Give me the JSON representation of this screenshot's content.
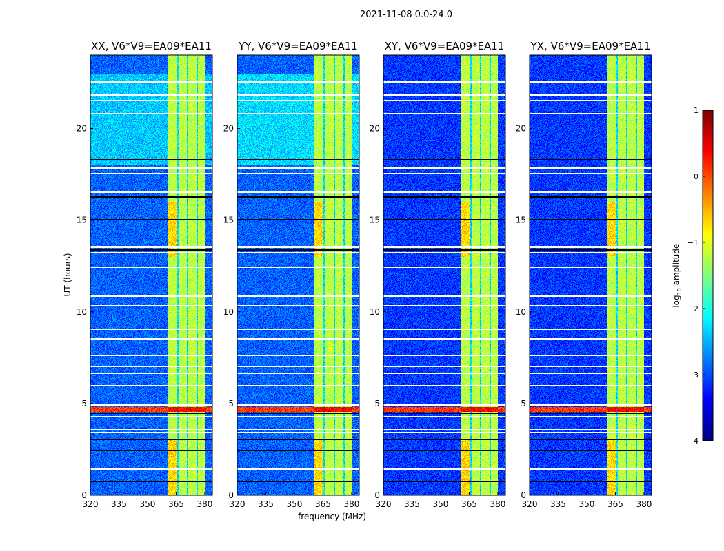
{
  "chart_data": {
    "type": "heatmap",
    "title": "2021-11-08 0.0-24.0",
    "xlabel": "frequency (MHz)",
    "ylabel": "UT (hours)",
    "xlim": [
      320,
      384
    ],
    "ylim": [
      0,
      24
    ],
    "xticks": [
      320,
      335,
      350,
      365,
      380
    ],
    "yticks": [
      0,
      5,
      10,
      15,
      20
    ],
    "panels": [
      {
        "title": "XX, V6*V9=EA09*EA11",
        "background_level": -2.9,
        "evening_level": -2.4
      },
      {
        "title": "YY, V6*V9=EA09*EA11",
        "background_level": -2.9,
        "evening_level": -2.3
      },
      {
        "title": "XY, V6*V9=EA09*EA11",
        "background_level": -3.1,
        "evening_level": -3.1
      },
      {
        "title": "YX, V6*V9=EA09*EA11",
        "background_level": -3.1,
        "evening_level": -3.1
      }
    ],
    "bright_band_mhz": [
      360.5,
      380
    ],
    "bright_band_level": -1.2,
    "band_gaps_mhz": [
      [
        365.3,
        366.2
      ],
      [
        370.6,
        371.4
      ],
      [
        375.6,
        376.4
      ]
    ],
    "flagged_times_hours": [
      [
        1.35,
        1.5
      ],
      [
        3.38,
        3.45
      ],
      [
        3.58,
        3.62
      ],
      [
        4.28,
        4.33
      ],
      [
        4.9,
        5.0
      ],
      [
        5.95,
        6.0
      ],
      [
        6.6,
        6.65
      ],
      [
        7.0,
        7.05
      ],
      [
        7.6,
        7.65
      ],
      [
        8.5,
        8.55
      ],
      [
        9.0,
        9.05
      ],
      [
        9.8,
        9.85
      ],
      [
        10.3,
        10.35
      ],
      [
        10.8,
        10.9
      ],
      [
        11.7,
        11.75
      ],
      [
        12.2,
        12.25
      ],
      [
        12.4,
        12.45
      ],
      [
        12.7,
        12.75
      ],
      [
        13.2,
        13.25
      ],
      [
        13.5,
        13.6
      ],
      [
        15.2,
        15.25
      ],
      [
        16.5,
        16.55
      ],
      [
        17.5,
        17.58
      ],
      [
        17.8,
        17.9
      ],
      [
        18.1,
        18.15
      ],
      [
        20.8,
        20.85
      ],
      [
        21.5,
        21.55
      ],
      [
        21.8,
        21.85
      ],
      [
        22.5,
        22.6
      ]
    ],
    "dead_times_hours": [
      [
        0.72,
        0.75
      ],
      [
        2.4,
        2.43
      ],
      [
        3.0,
        3.03
      ],
      [
        4.45,
        4.5
      ],
      [
        13.35,
        13.4
      ],
      [
        15.0,
        15.05
      ],
      [
        16.2,
        16.3
      ],
      [
        18.3,
        18.33
      ],
      [
        19.3,
        19.33
      ]
    ],
    "strong_rfi_hours": [
      4.55,
      4.8
    ],
    "strong_rfi_level": 0.4,
    "colorbar": {
      "clim": [
        -4,
        1
      ],
      "ticks": [
        "1",
        "0",
        "−1",
        "−2",
        "−3",
        "−4"
      ],
      "tick_values": [
        1,
        0,
        -1,
        -2,
        -3,
        -4
      ],
      "label_main": "log",
      "label_sub": "10",
      "label_rest": " amplitude"
    }
  }
}
